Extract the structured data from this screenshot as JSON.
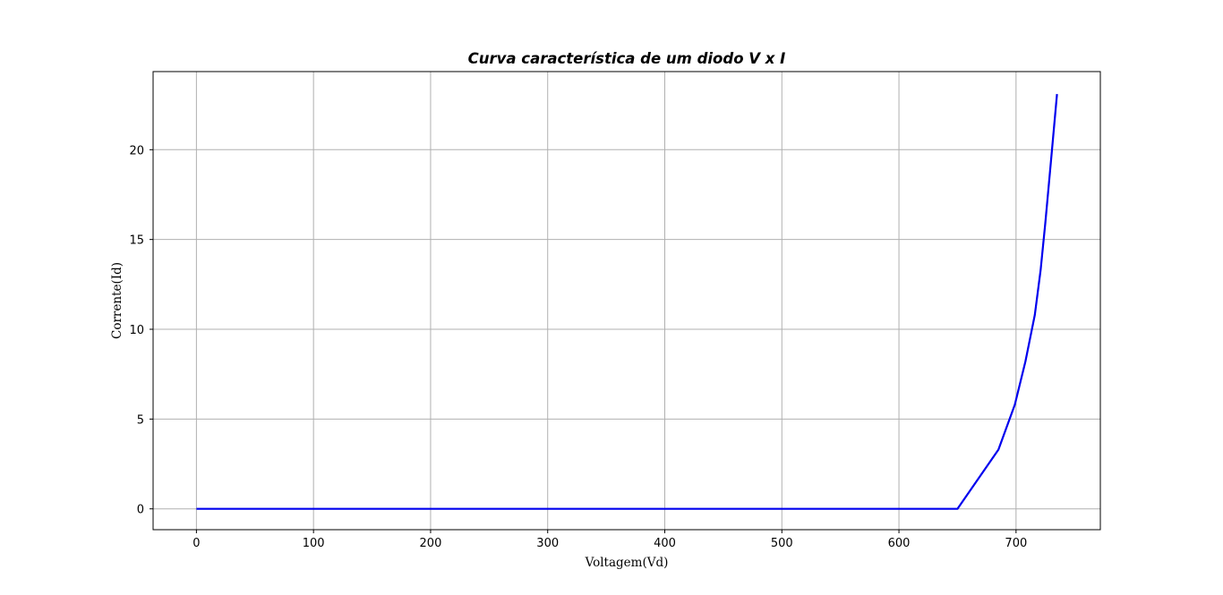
{
  "chart_data": {
    "type": "line",
    "title": "Curva característica de um diodo V x I",
    "xlabel": "Voltagem(Vd)",
    "ylabel": "Corrente(Id)",
    "xlim": [
      -37,
      772
    ],
    "ylim": [
      -1.16,
      24.35
    ],
    "xticks": [
      0,
      100,
      200,
      300,
      400,
      500,
      600,
      700
    ],
    "yticks": [
      0,
      5,
      10,
      15,
      20
    ],
    "grid": true,
    "legend": "none",
    "series": [
      {
        "color": "#0000ee",
        "x": [
          0,
          100,
          200,
          300,
          400,
          500,
          600,
          650,
          685,
          699,
          708,
          716,
          721,
          725,
          730,
          735
        ],
        "y": [
          0,
          0,
          0,
          0,
          0,
          0,
          0,
          0,
          3.3,
          5.8,
          8.2,
          10.8,
          13.3,
          15.9,
          19.5,
          23.1
        ]
      }
    ]
  }
}
